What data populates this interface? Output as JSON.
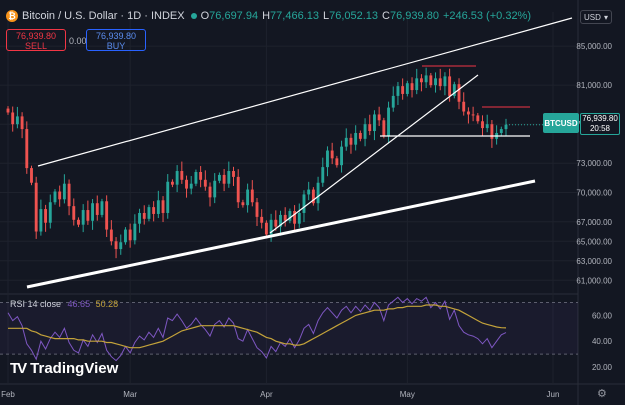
{
  "header": {
    "icon_glyph": "₿",
    "title": "Bitcoin / U.S. Dollar · 1D · INDEX",
    "open_label": "O",
    "open": "76,697.94",
    "high_label": "H",
    "high": "77,466.13",
    "low_label": "L",
    "low": "76,052.13",
    "close_label": "C",
    "close": "76,939.80",
    "change": "+246.53 (+0.32%)"
  },
  "trade": {
    "sell_price": "76,939.80",
    "sell_label": "SELL",
    "spread": "0.00",
    "buy_price": "76,939.80",
    "buy_label": "BUY"
  },
  "currency_button": "USD",
  "price_tag": {
    "symbol": "BTCUSD",
    "price": "76,939.80",
    "countdown": "20:58"
  },
  "rsi_panel": {
    "label": "RSI 14 close",
    "rsi": "46.65",
    "ma": "50.28"
  },
  "branding": {
    "mark": "TV",
    "name": "TradingView"
  },
  "icons": {
    "settings": "gear-icon",
    "coin": "bitcoin-icon"
  },
  "colors": {
    "up": "#26a69a",
    "down": "#ef5350",
    "rsi": "#7e57c2",
    "rsi_ma": "#c4a33a",
    "bg": "#131722"
  },
  "chart_data": [
    {
      "type": "candlestick",
      "title": "Bitcoin / U.S. Dollar · 1D · INDEX",
      "ylim": [
        59800,
        88500
      ],
      "y_ticks": [
        61000,
        63000,
        65000,
        67000,
        70000,
        73000,
        77000,
        81000,
        85000
      ],
      "y_tick_labels": [
        "61,000.00",
        "63,000.00",
        "65,000.00",
        "67,000.00",
        "70,000.00",
        "73,000.00",
        "77,000.00",
        "81,000.00",
        "85,000.00"
      ],
      "x_tick_labels": [
        "Feb",
        "Mar",
        "Apr",
        "May",
        "Jun"
      ],
      "grid": true,
      "closes": [
        78200,
        77000,
        77800,
        76500,
        72500,
        71000,
        66000,
        68300,
        66900,
        69000,
        70100,
        69300,
        70900,
        68600,
        67200,
        66700,
        68200,
        67100,
        68900,
        67700,
        69100,
        66200,
        65000,
        64200,
        64900,
        66200,
        65100,
        66800,
        67900,
        67300,
        68500,
        67800,
        69200,
        67900,
        71100,
        70800,
        72200,
        71300,
        70400,
        70900,
        72100,
        71300,
        70600,
        69500,
        71200,
        71800,
        70900,
        72200,
        71600,
        69000,
        68700,
        70300,
        69000,
        67500,
        66900,
        65700,
        67200,
        66500,
        67700,
        67100,
        68100,
        66800,
        67900,
        69800,
        70300,
        68900,
        71000,
        72600,
        74300,
        73500,
        72800,
        74700,
        75600,
        74900,
        76100,
        75500,
        77000,
        76300,
        78000,
        77400,
        75800,
        78700,
        79900,
        80900,
        80100,
        81200,
        80500,
        81700,
        81300,
        82000,
        81000,
        81700,
        80900,
        81900,
        79900,
        81100,
        79300,
        78300,
        78000,
        77900,
        77300,
        76600,
        77000,
        75500,
        76100,
        76500,
        76939.8
      ],
      "last_price": 76939.8,
      "annotations": [
        "BTCUSD",
        "20:58"
      ]
    },
    {
      "type": "line",
      "title": "RSI 14 close",
      "y_ticks": [
        20,
        40,
        60
      ],
      "y_tick_labels": [
        "20.00",
        "40.00",
        "60.00"
      ],
      "series": [
        {
          "name": "RSI",
          "values": [
            62,
            56,
            59,
            52,
            38,
            33,
            26,
            40,
            34,
            42,
            47,
            43,
            50,
            39,
            33,
            31,
            41,
            36,
            45,
            39,
            46,
            33,
            28,
            25,
            29,
            36,
            31,
            39,
            44,
            41,
            47,
            43,
            50,
            43,
            58,
            56,
            61,
            56,
            50,
            53,
            58,
            53,
            49,
            44,
            53,
            56,
            51,
            58,
            54,
            42,
            40,
            49,
            42,
            35,
            32,
            27,
            36,
            32,
            39,
            36,
            42,
            35,
            41,
            50,
            53,
            46,
            56,
            62,
            66,
            62,
            58,
            64,
            67,
            62,
            67,
            63,
            68,
            64,
            70,
            66,
            56,
            68,
            71,
            74,
            70,
            73,
            69,
            73,
            71,
            74,
            66,
            70,
            65,
            71,
            57,
            64,
            52,
            47,
            45,
            44,
            42,
            38,
            42,
            35,
            40,
            45,
            46.65
          ]
        },
        {
          "name": "RSI-based MA",
          "values": [
            50,
            50,
            50,
            50,
            50,
            48,
            47,
            45,
            44,
            43,
            42,
            42,
            42,
            42,
            42,
            41,
            41,
            40,
            40,
            40,
            40,
            39,
            39,
            38,
            37,
            36,
            35,
            35,
            35,
            36,
            37,
            38,
            39,
            40,
            42,
            44,
            46,
            48,
            49,
            50,
            51,
            52,
            52,
            52,
            52,
            52,
            52,
            52,
            52,
            51,
            50,
            49,
            48,
            47,
            45,
            43,
            42,
            40,
            39,
            38,
            38,
            37,
            37,
            38,
            40,
            42,
            44,
            46,
            48,
            50,
            52,
            54,
            56,
            58,
            60,
            61,
            62,
            63,
            64,
            64,
            64,
            65,
            65,
            66,
            66,
            67,
            67,
            67,
            67,
            68,
            68,
            68,
            67,
            67,
            66,
            65,
            64,
            62,
            60,
            58,
            56,
            54,
            53,
            52,
            51,
            50.5,
            50.28
          ]
        }
      ]
    }
  ]
}
